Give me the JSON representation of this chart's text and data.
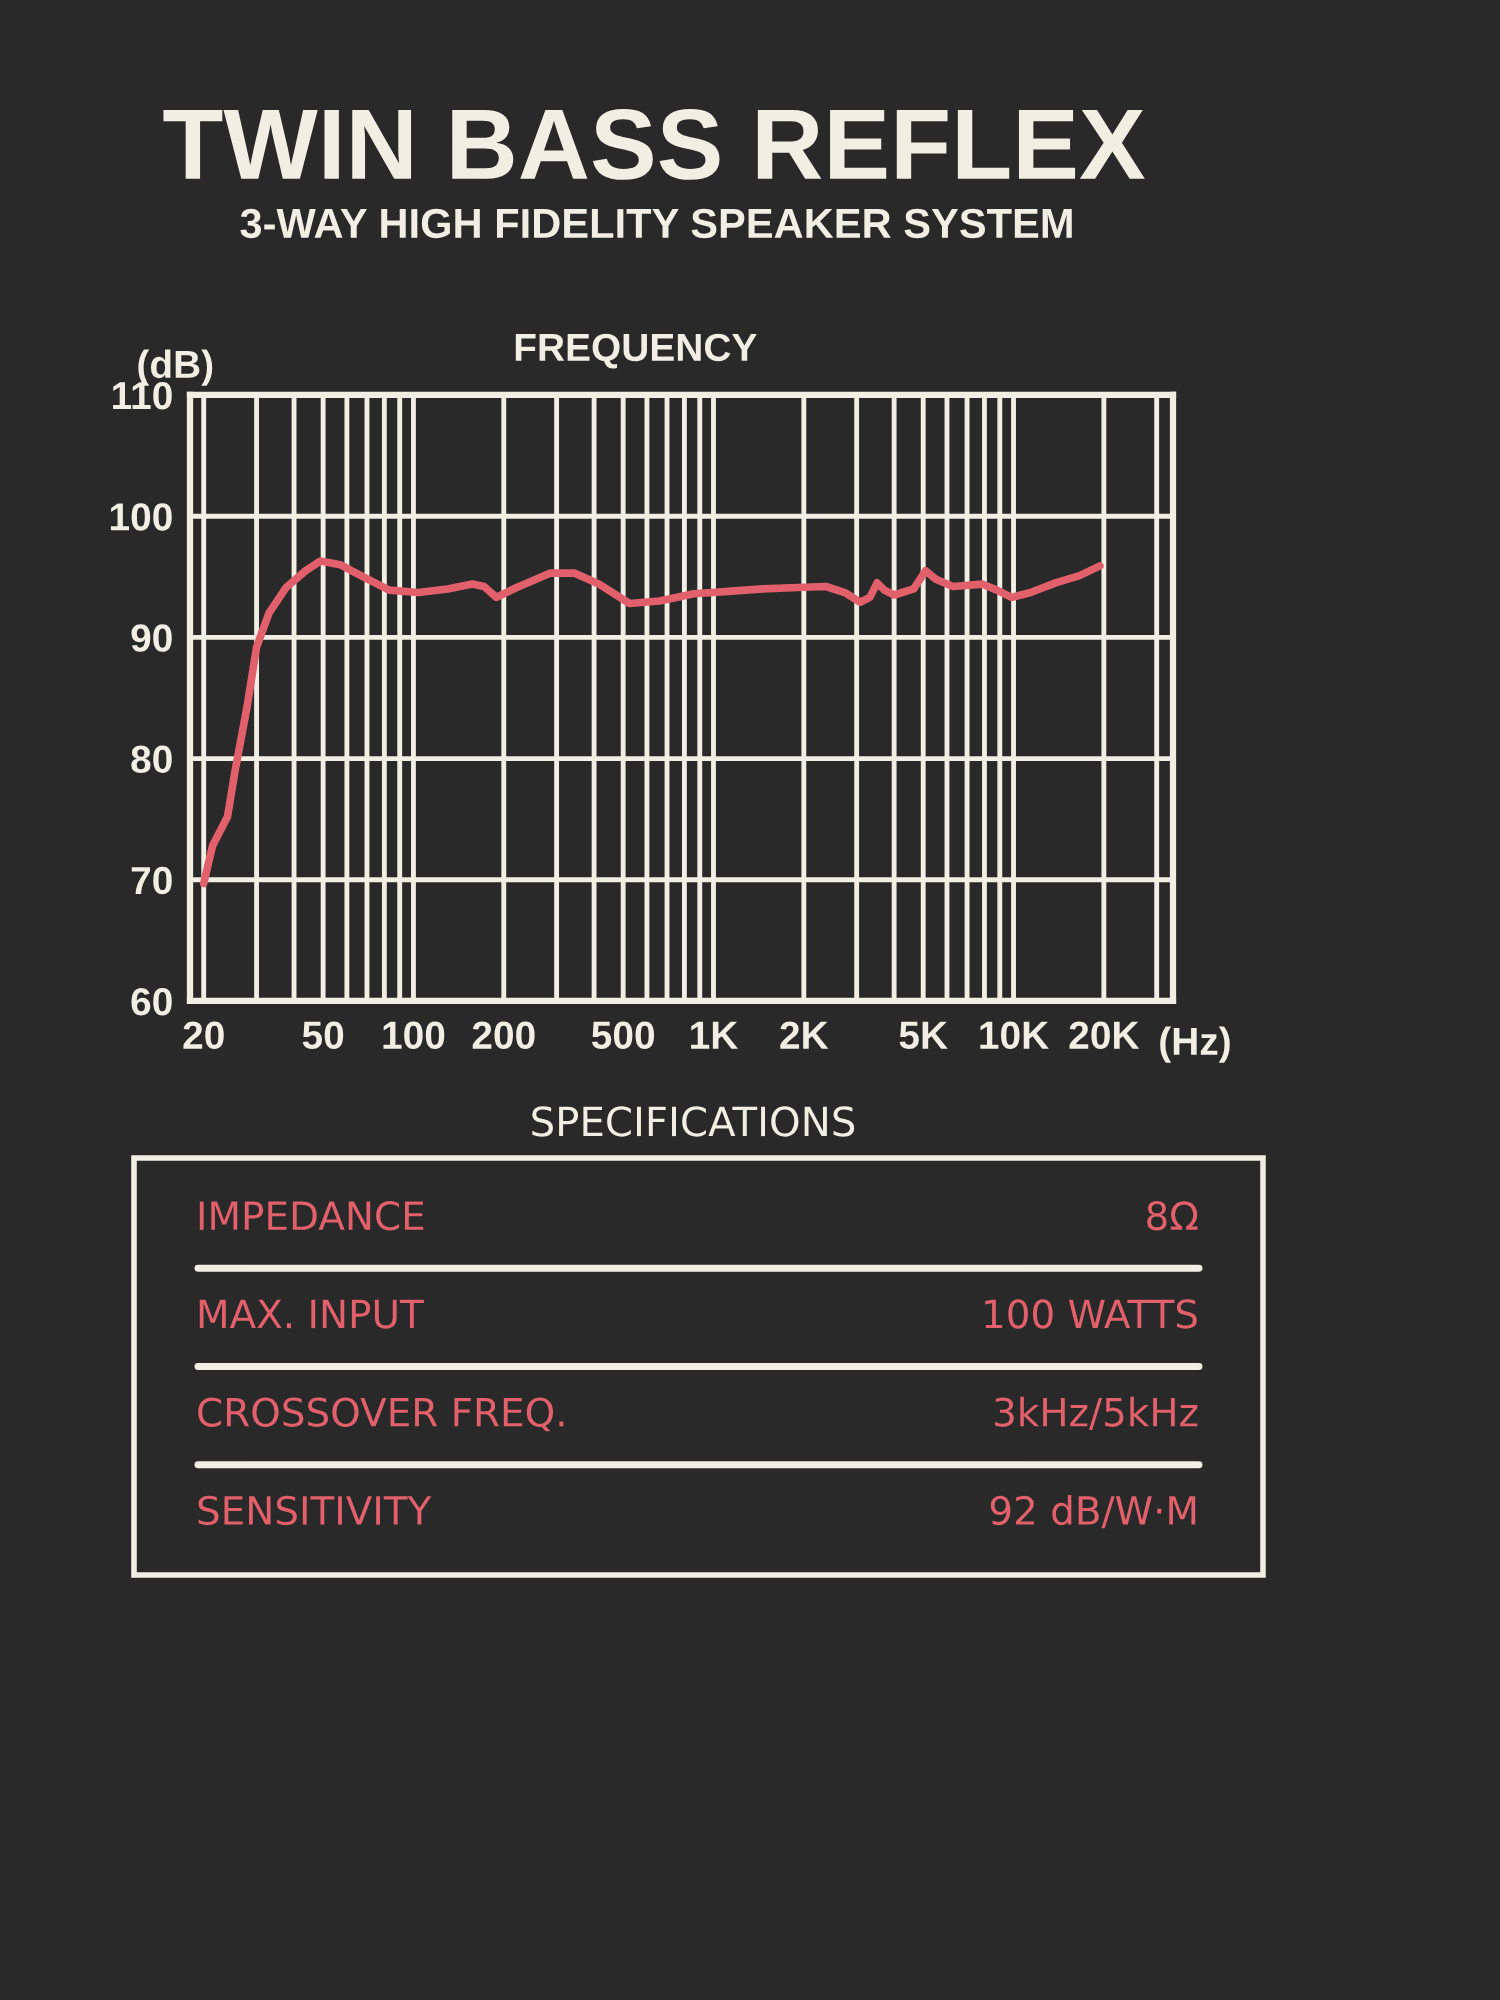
{
  "chart_data": {
    "type": "line",
    "title": "TWIN BASS REFLEX",
    "subtitle": "3-WAY HIGH FIDELITY SPEAKER SYSTEM",
    "xlabel": "(Hz)",
    "ylabel": "(dB)",
    "log": "x",
    "grid": true,
    "xlim": [
      18,
      34000
    ],
    "ylim": [
      60,
      110
    ],
    "xticks": [
      20,
      50,
      100,
      200,
      500,
      {
        "value": 1000,
        "label": "1K"
      },
      {
        "value": 2000,
        "label": "2K"
      },
      {
        "value": 5000,
        "label": "5K"
      },
      {
        "value": 10000,
        "label": "10K"
      },
      {
        "value": 20000,
        "label": "20K"
      }
    ],
    "yticks": [
      60,
      70,
      80,
      90,
      100,
      110
    ],
    "series": [
      {
        "color": "#e2606b",
        "x": [
          20,
          21.4,
          24,
          25.4,
          27.9,
          30,
          33,
          37.6,
          43.7,
          49,
          57,
          68,
          83,
          104,
          130,
          157,
          172,
          189,
          220,
          285,
          345,
          415,
          525,
          661,
          860,
          1120,
          1460,
          1820,
          2370,
          2740,
          3080,
          3320,
          3510,
          3710,
          4000,
          4650,
          5090,
          5510,
          6280,
          7860,
          8800,
          9850,
          11400,
          13800,
          16600,
          19400
        ],
        "values": [
          69.7,
          72.8,
          75.2,
          78.9,
          84.3,
          89.2,
          92.0,
          94.1,
          95.5,
          96.3,
          96.0,
          95.0,
          93.9,
          93.7,
          94.0,
          94.4,
          94.2,
          93.3,
          94.1,
          95.3,
          95.3,
          94.4,
          92.8,
          93.0,
          93.6,
          93.8,
          94.0,
          94.1,
          94.2,
          93.7,
          92.9,
          93.3,
          94.5,
          93.9,
          93.5,
          94.0,
          95.5,
          94.8,
          94.2,
          94.4,
          93.9,
          93.3,
          93.7,
          94.5,
          95.1,
          95.9
        ]
      }
    ],
    "annotations": [
      "FREQUENCY",
      "SPECIFICATIONS",
      "IMPEDANCE",
      "8Ω",
      "MAX. INPUT",
      "100 WATTS",
      "CROSSOVER FREQ.",
      "3kHz/5kHz",
      "SENSITIVITY",
      "92 dB/W·M"
    ]
  }
}
